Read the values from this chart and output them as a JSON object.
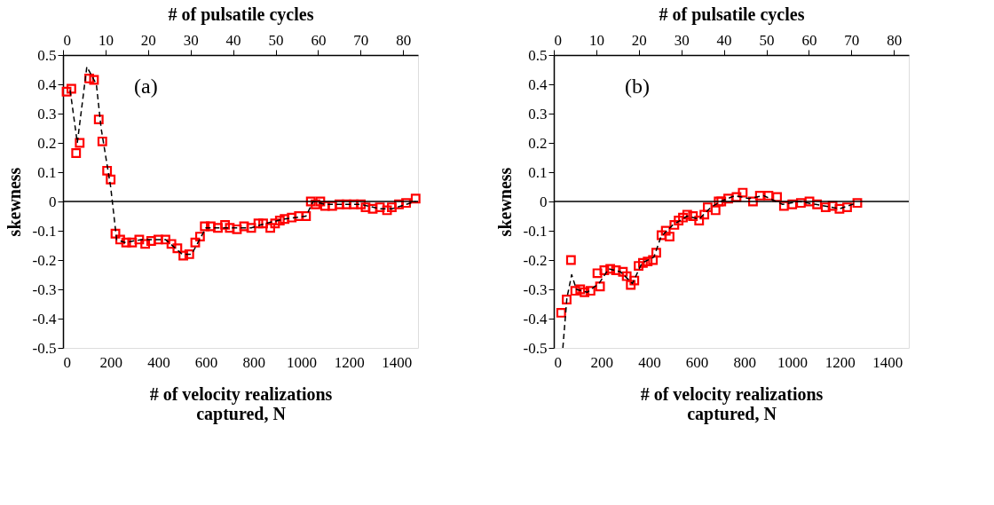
{
  "chart_data": [
    {
      "type": "scatter",
      "xlabel": "# of velocity realizations captured, N",
      "x2label": "# of pulsatile cycles",
      "ylabel": "skewness",
      "annotations": [
        "(a)"
      ],
      "xlim": [
        0,
        1490
      ],
      "xticks": [
        0,
        200,
        400,
        600,
        800,
        1000,
        1200,
        1400
      ],
      "x2lim": [
        0,
        83.5
      ],
      "x2ticks": [
        0,
        10,
        20,
        30,
        40,
        50,
        60,
        70,
        80
      ],
      "ylim": [
        -0.5,
        0.5
      ],
      "yticks": [
        -0.5,
        -0.4,
        -0.3,
        -0.2,
        -0.1,
        0,
        0.1,
        0.2,
        0.3,
        0.4,
        0.5
      ],
      "grid": false,
      "ref_lines": [
        {
          "axis": "y",
          "value": 0,
          "color": "#000000"
        }
      ],
      "series": [
        {
          "color": "#ff0000",
          "marker": "square",
          "x": [
            15,
            35,
            55,
            70,
            110,
            130,
            150,
            165,
            185,
            200,
            220,
            240,
            265,
            290,
            320,
            345,
            370,
            400,
            430,
            455,
            480,
            505,
            530,
            555,
            575,
            595,
            620,
            650,
            680,
            700,
            730,
            760,
            790,
            820,
            840,
            870,
            890,
            910,
            930,
            960,
            990,
            1020,
            1040,
            1060,
            1080,
            1100,
            1130,
            1160,
            1190,
            1220,
            1250,
            1270,
            1300,
            1330,
            1360,
            1380,
            1410,
            1440,
            1480
          ],
          "values": [
            0.375,
            0.385,
            0.165,
            0.2,
            0.42,
            0.415,
            0.28,
            0.205,
            0.105,
            0.075,
            -0.11,
            -0.13,
            -0.14,
            -0.14,
            -0.13,
            -0.145,
            -0.135,
            -0.13,
            -0.13,
            -0.145,
            -0.16,
            -0.185,
            -0.18,
            -0.14,
            -0.12,
            -0.085,
            -0.085,
            -0.09,
            -0.08,
            -0.09,
            -0.095,
            -0.085,
            -0.09,
            -0.075,
            -0.075,
            -0.09,
            -0.075,
            -0.065,
            -0.06,
            -0.055,
            -0.05,
            -0.05,
            0.0,
            -0.01,
            0.0,
            -0.015,
            -0.015,
            -0.01,
            -0.01,
            -0.01,
            -0.01,
            -0.02,
            -0.025,
            -0.02,
            -0.03,
            -0.02,
            -0.01,
            -0.005,
            0.01
          ]
        },
        {
          "type": "line",
          "color": "#000000",
          "marker": "none",
          "line_style": "dashed",
          "x": [
            30,
            60,
            100,
            140,
            160,
            200,
            225,
            260,
            330,
            430,
            500,
            540,
            600,
            700,
            790,
            850,
            930,
            1020,
            1050,
            1100,
            1250,
            1330,
            1380,
            1480
          ],
          "values": [
            0.38,
            0.2,
            0.46,
            0.4,
            0.25,
            0.05,
            -0.13,
            -0.14,
            -0.13,
            -0.13,
            -0.18,
            -0.18,
            -0.09,
            -0.09,
            -0.09,
            -0.075,
            -0.06,
            -0.05,
            0.0,
            -0.01,
            -0.01,
            -0.025,
            -0.025,
            0.0
          ]
        }
      ]
    },
    {
      "type": "scatter",
      "xlabel": "# of velocity realizations captured, N",
      "x2label": "# of pulsatile cycles",
      "ylabel": "skewness",
      "annotations": [
        "(b)"
      ],
      "xlim": [
        0,
        1490
      ],
      "xticks": [
        0,
        200,
        400,
        600,
        800,
        1000,
        1200,
        1400
      ],
      "x2lim": [
        0,
        83.5
      ],
      "x2ticks": [
        0,
        10,
        20,
        30,
        40,
        50,
        60,
        70,
        80
      ],
      "ylim": [
        -0.5,
        0.5
      ],
      "yticks": [
        -0.5,
        -0.4,
        -0.3,
        -0.2,
        -0.1,
        0,
        0.1,
        0.2,
        0.3,
        0.4,
        0.5
      ],
      "grid": false,
      "ref_lines": [
        {
          "axis": "y",
          "value": 0,
          "color": "#000000"
        }
      ],
      "series": [
        {
          "color": "#ff0000",
          "marker": "square",
          "x": [
            31,
            54,
            72,
            90,
            111,
            129,
            154,
            183,
            194,
            212,
            237,
            261,
            290,
            306,
            323,
            338,
            356,
            374,
            394,
            416,
            430,
            452,
            470,
            486,
            506,
            524,
            542,
            560,
            584,
            610,
            632,
            646,
            679,
            692,
            703,
            732,
            767,
            793,
            836,
            865,
            901,
            937,
            966,
            1001,
            1037,
            1073,
            1105,
            1141,
            1170,
            1199,
            1231,
            1274
          ],
          "values": [
            -0.38,
            -0.335,
            -0.2,
            -0.305,
            -0.3,
            -0.31,
            -0.305,
            -0.245,
            -0.29,
            -0.235,
            -0.23,
            -0.235,
            -0.24,
            -0.255,
            -0.285,
            -0.27,
            -0.22,
            -0.21,
            -0.205,
            -0.2,
            -0.175,
            -0.115,
            -0.1,
            -0.12,
            -0.08,
            -0.065,
            -0.055,
            -0.045,
            -0.05,
            -0.065,
            -0.045,
            -0.02,
            -0.03,
            0.0,
            0.0,
            0.01,
            0.015,
            0.03,
            0.0,
            0.02,
            0.02,
            0.015,
            -0.015,
            -0.01,
            -0.005,
            0.0,
            -0.01,
            -0.02,
            -0.015,
            -0.025,
            -0.02,
            -0.005
          ]
        },
        {
          "type": "line",
          "color": "#000000",
          "marker": "none",
          "line_style": "dashed",
          "x": [
            38,
            55,
            75,
            95,
            140,
            190,
            230,
            280,
            330,
            370,
            420,
            450,
            500,
            560,
            610,
            660,
            700,
            760,
            820,
            880,
            960,
            1030,
            1100,
            1200,
            1270
          ],
          "values": [
            -0.5,
            -0.33,
            -0.25,
            -0.3,
            -0.31,
            -0.28,
            -0.23,
            -0.24,
            -0.28,
            -0.21,
            -0.19,
            -0.12,
            -0.08,
            -0.05,
            -0.06,
            -0.02,
            0.0,
            0.02,
            0.01,
            0.02,
            -0.01,
            0.0,
            -0.01,
            -0.025,
            -0.005
          ]
        }
      ]
    }
  ]
}
